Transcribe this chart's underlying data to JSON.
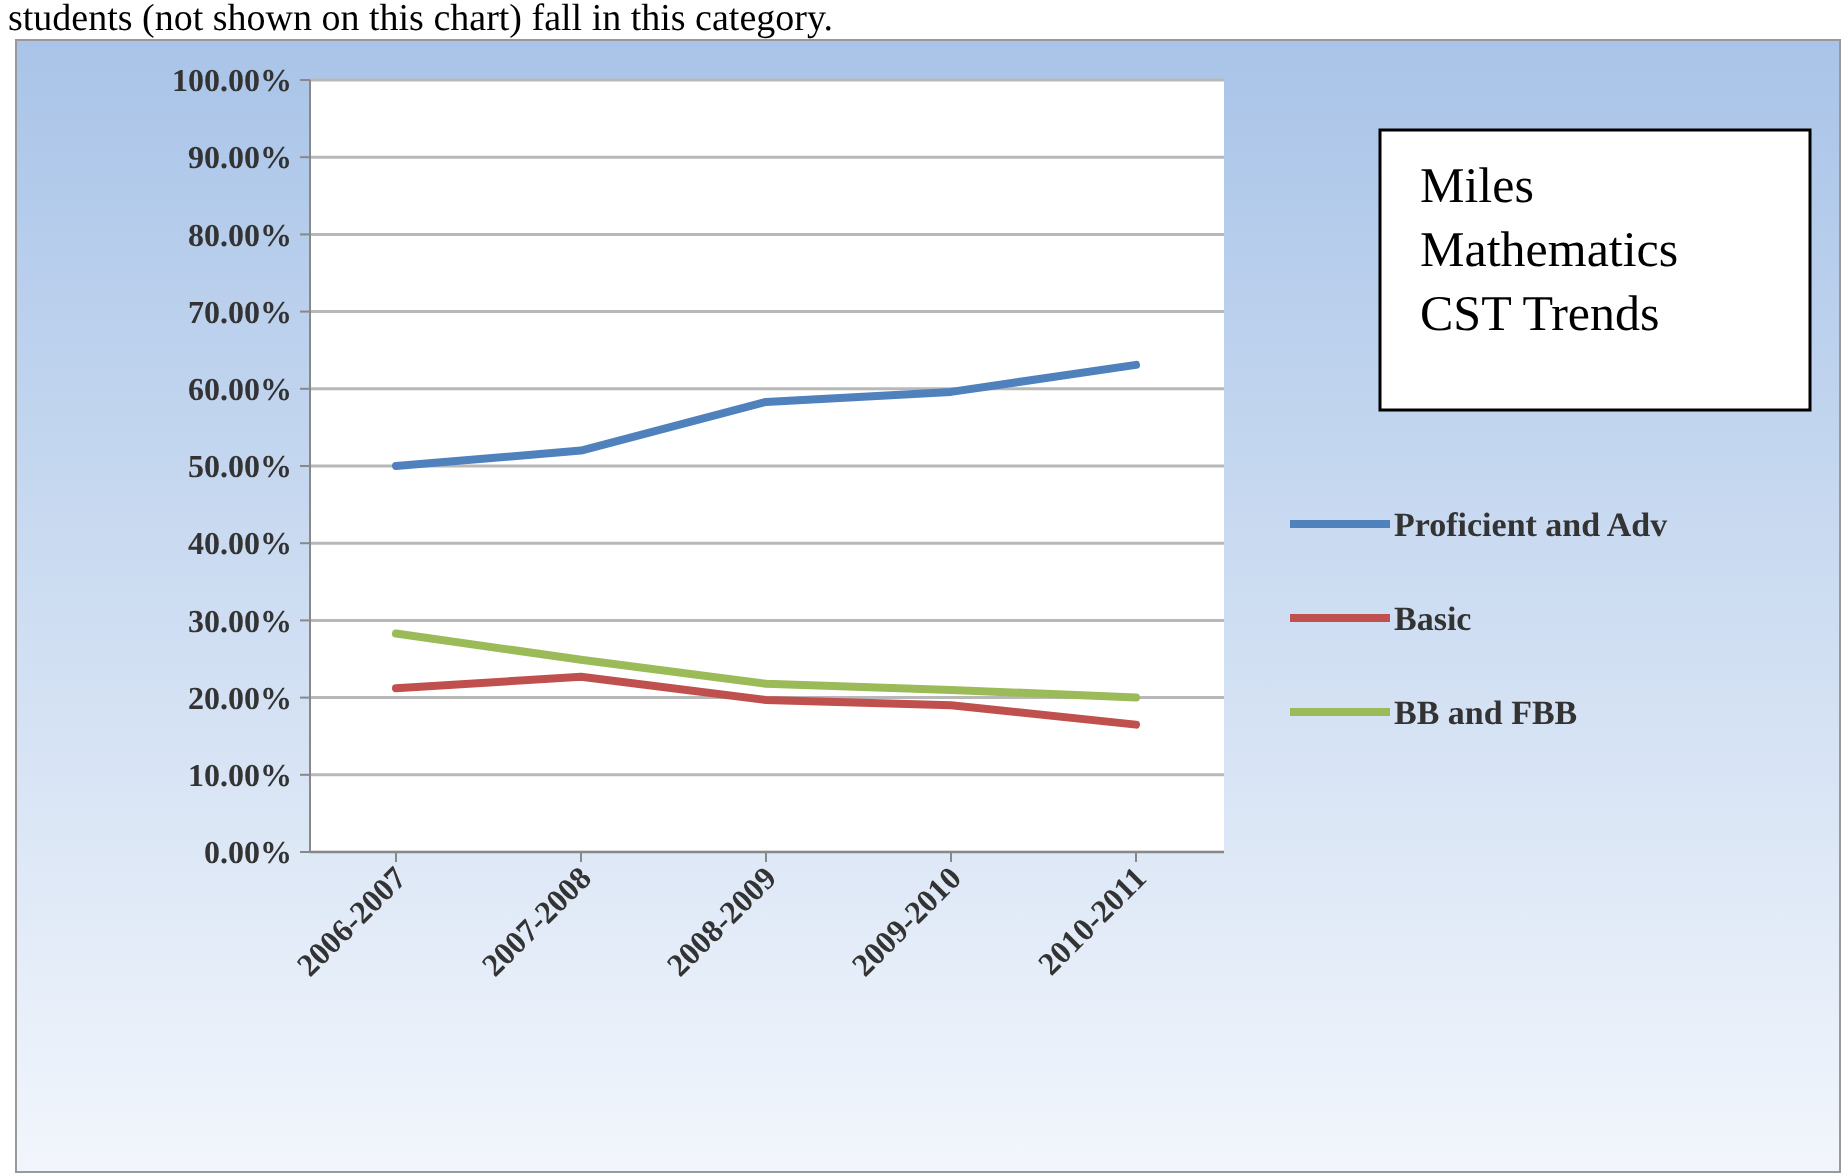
{
  "chart_data": {
    "type": "line",
    "title": "Miles Mathematics CST Trends",
    "annotations": [
      "students (not shown on this chart) fall in this category."
    ],
    "categories": [
      "2006-2007",
      "2007-2008",
      "2008-2009",
      "2009-2010",
      "2010-2011"
    ],
    "series": [
      {
        "name": "Proficient and Adv",
        "color": "#4f81bd",
        "values": [
          50,
          52,
          58.3,
          59.6,
          63.1
        ]
      },
      {
        "name": "Basic",
        "color": "#c0504d",
        "values": [
          21.2,
          22.7,
          19.7,
          19,
          16.5
        ]
      },
      {
        "name": "BB and FBB",
        "color": "#9bbb59",
        "values": [
          28.3,
          24.9,
          21.8,
          21,
          20
        ]
      }
    ],
    "ylim": [
      0,
      100
    ],
    "yticks": [
      {
        "value": 0,
        "label": "0.00%"
      },
      {
        "value": 10,
        "label": "10.00%"
      },
      {
        "value": 20,
        "label": "20.00%"
      },
      {
        "value": 30,
        "label": "30.00%"
      },
      {
        "value": 40,
        "label": "40.00%"
      },
      {
        "value": 50,
        "label": "50.00%"
      },
      {
        "value": 60,
        "label": "60.00%"
      },
      {
        "value": 70,
        "label": "70.00%"
      },
      {
        "value": 80,
        "label": "80.00%"
      },
      {
        "value": 90,
        "label": "90.00%"
      },
      {
        "value": 100,
        "label": "100.00%"
      }
    ],
    "grid": "y",
    "legend": "right",
    "marker": "none",
    "line_style": "solid"
  }
}
